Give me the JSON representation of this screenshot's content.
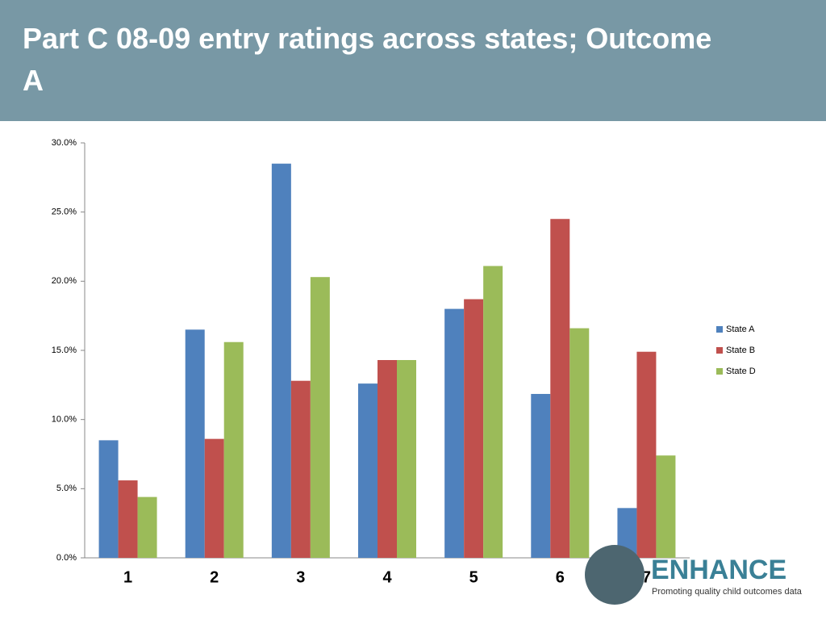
{
  "chart_data": {
    "type": "bar",
    "title": "Part C 08-09 entry ratings across states; Outcome A",
    "categories": [
      "1",
      "2",
      "3",
      "4",
      "5",
      "6",
      "7"
    ],
    "series": [
      {
        "name": "State A",
        "color": "#4f81bd",
        "values": [
          8.5,
          16.5,
          28.5,
          12.6,
          18.0,
          11.85,
          3.6
        ]
      },
      {
        "name": "State B",
        "color": "#c0504d",
        "values": [
          5.6,
          8.6,
          12.8,
          14.3,
          18.7,
          24.5,
          14.9
        ]
      },
      {
        "name": "State D",
        "color": "#9bbb59",
        "values": [
          4.4,
          15.6,
          20.3,
          14.3,
          21.1,
          16.6,
          7.4
        ]
      }
    ],
    "ylim": [
      0,
      30
    ],
    "yticks": [
      {
        "value": 0,
        "label": "0.0%"
      },
      {
        "value": 5,
        "label": "5.0%"
      },
      {
        "value": 10,
        "label": "10.0%"
      },
      {
        "value": 15,
        "label": "15.0%"
      },
      {
        "value": 20,
        "label": "20.0%"
      },
      {
        "value": 25,
        "label": "25.0%"
      },
      {
        "value": 30,
        "label": "30.0%"
      }
    ],
    "grid": false,
    "legend": "right"
  },
  "logo": {
    "name": "ENHANCE",
    "tagline": "Promoting quality child outcomes data"
  }
}
